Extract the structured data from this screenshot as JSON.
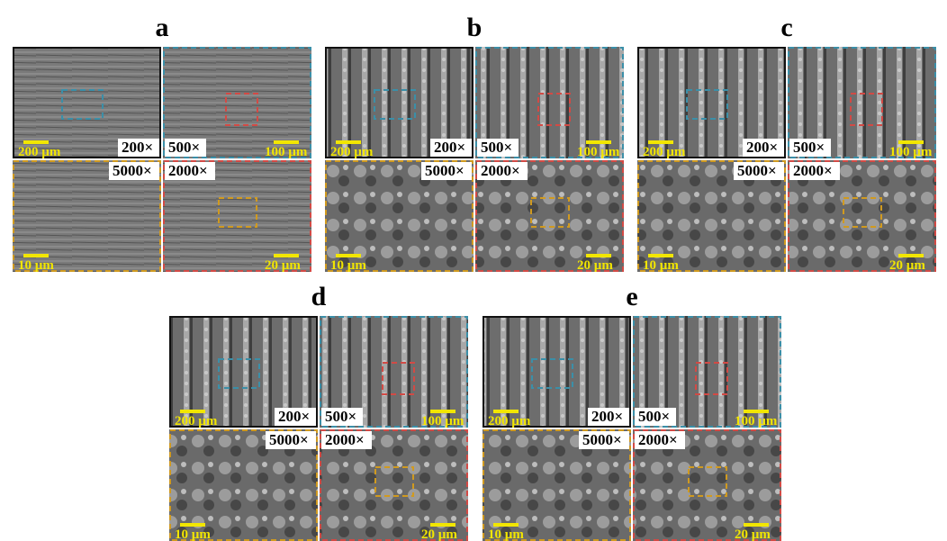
{
  "panels": [
    {
      "label": "a",
      "images": [
        {
          "magnification": "200×",
          "scale": "200 µm"
        },
        {
          "magnification": "500×",
          "scale": "100 µm"
        },
        {
          "magnification": "5000×",
          "scale": "10 µm"
        },
        {
          "magnification": "2000×",
          "scale": "20 µm"
        }
      ]
    },
    {
      "label": "b",
      "images": [
        {
          "magnification": "200×",
          "scale": "200 µm"
        },
        {
          "magnification": "500×",
          "scale": "100 µm"
        },
        {
          "magnification": "5000×",
          "scale": "10 µm"
        },
        {
          "magnification": "2000×",
          "scale": "20 µm"
        }
      ]
    },
    {
      "label": "c",
      "images": [
        {
          "magnification": "200×",
          "scale": "200 µm"
        },
        {
          "magnification": "500×",
          "scale": "100 µm"
        },
        {
          "magnification": "5000×",
          "scale": "10 µm"
        },
        {
          "magnification": "2000×",
          "scale": "20 µm"
        }
      ]
    },
    {
      "label": "d",
      "images": [
        {
          "magnification": "200×",
          "scale": "200 µm"
        },
        {
          "magnification": "500×",
          "scale": "100 µm"
        },
        {
          "magnification": "5000×",
          "scale": "10 µm"
        },
        {
          "magnification": "2000×",
          "scale": "20 µm"
        }
      ]
    },
    {
      "label": "e",
      "images": [
        {
          "magnification": "200×",
          "scale": "200 µm"
        },
        {
          "magnification": "500×",
          "scale": "100 µm"
        },
        {
          "magnification": "5000×",
          "scale": "10 µm"
        },
        {
          "magnification": "2000×",
          "scale": "20 µm"
        }
      ]
    }
  ]
}
